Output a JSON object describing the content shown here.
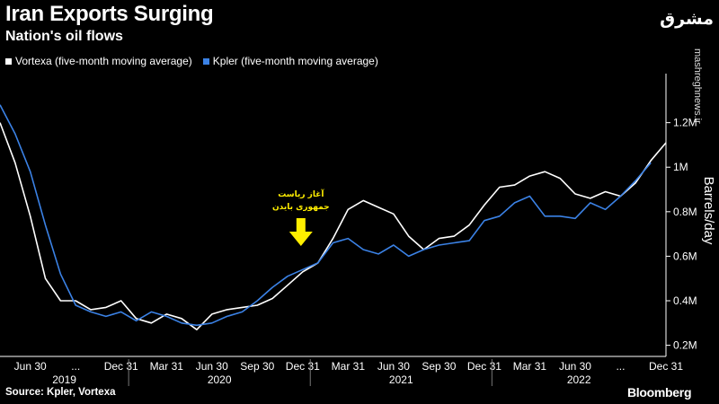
{
  "title": "Iran Exports Surging",
  "subtitle": "Nation's oil flows",
  "legend": [
    {
      "name": "Vortexa (five-month moving average)",
      "color": "#ffffff"
    },
    {
      "name": "Kpler (five-month moving average)",
      "color": "#3b82e6"
    }
  ],
  "brand": {
    "logo": "مشرق",
    "watermark": "mashreghnews.ir"
  },
  "source": "Source: Kpler, Vortexa",
  "publisher": "Bloomberg",
  "annotation": {
    "line1": "آغاز ریاست",
    "line2": "جمهوری بایدن",
    "color": "#ffee00"
  },
  "chart_data": {
    "type": "line",
    "title": "Iran Exports Surging",
    "subtitle": "Nation's oil flows",
    "xlabel": "",
    "ylabel": "Barrels/day",
    "ylim": [
      0.15,
      1.38
    ],
    "yticks": [
      {
        "value": 0.2,
        "label": "0.2M"
      },
      {
        "value": 0.4,
        "label": "0.4M"
      },
      {
        "value": 0.6,
        "label": "0.6M"
      },
      {
        "value": 0.8,
        "label": "0.8M"
      },
      {
        "value": 1.0,
        "label": "1M"
      },
      {
        "value": 1.2,
        "label": "1.2M"
      }
    ],
    "xticks": [
      {
        "index": 2,
        "label": "Jun 30"
      },
      {
        "index": 8,
        "label": "Dec 31"
      },
      {
        "index": 11,
        "label": "Mar 31"
      },
      {
        "index": 14,
        "label": "Jun 30"
      },
      {
        "index": 17,
        "label": "Sep 30"
      },
      {
        "index": 20,
        "label": "Dec 31"
      },
      {
        "index": 23,
        "label": "Mar 31"
      },
      {
        "index": 26,
        "label": "Jun 30"
      },
      {
        "index": 29,
        "label": "Sep 30"
      },
      {
        "index": 32,
        "label": "Dec 31"
      },
      {
        "index": 35,
        "label": "Mar 31"
      },
      {
        "index": 38,
        "label": "Jun 30"
      },
      {
        "index": 44,
        "label": "Dec 31"
      }
    ],
    "ellipsis_after_index": [
      2,
      38
    ],
    "ellipsis_text": "...",
    "years": [
      {
        "label": "2019",
        "start": -0.5,
        "end": 8.5
      },
      {
        "label": "2020",
        "start": 8.5,
        "end": 20.5
      },
      {
        "label": "2021",
        "start": 20.5,
        "end": 32.5
      },
      {
        "label": "2022",
        "start": 32.5,
        "end": 45.5
      }
    ],
    "marker_index": 20,
    "series": [
      {
        "name": "Vortexa (five-month moving average)",
        "color": "#ffffff",
        "values": [
          1.2,
          1.02,
          0.78,
          0.5,
          0.4,
          0.4,
          0.36,
          0.37,
          0.4,
          0.32,
          0.3,
          0.34,
          0.32,
          0.27,
          0.34,
          0.36,
          0.37,
          0.38,
          0.41,
          0.47,
          0.53,
          0.57,
          0.68,
          0.81,
          0.85,
          0.82,
          0.79,
          0.69,
          0.63,
          0.68,
          0.69,
          0.74,
          0.83,
          0.91,
          0.92,
          0.96,
          0.98,
          0.95,
          0.88,
          0.86,
          0.89,
          0.87,
          0.93,
          1.03,
          1.11
        ]
      },
      {
        "name": "Kpler (five-month moving average)",
        "color": "#3b82e6",
        "values": [
          1.28,
          1.15,
          0.98,
          0.74,
          0.52,
          0.38,
          0.35,
          0.33,
          0.35,
          0.31,
          0.35,
          0.33,
          0.3,
          0.29,
          0.3,
          0.33,
          0.35,
          0.4,
          0.46,
          0.51,
          0.54,
          0.57,
          0.66,
          0.68,
          0.63,
          0.61,
          0.65,
          0.6,
          0.63,
          0.65,
          0.66,
          0.67,
          0.76,
          0.78,
          0.84,
          0.87,
          0.78,
          0.78,
          0.77,
          0.84,
          0.81,
          0.87,
          0.94,
          1.02
        ]
      }
    ]
  }
}
